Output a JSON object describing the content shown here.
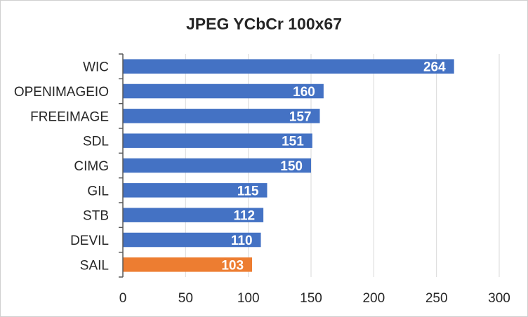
{
  "chart_data": {
    "type": "bar",
    "orientation": "horizontal",
    "title": "JPEG YCbCr 100x67",
    "categories": [
      "WIC",
      "OPENIMAGEIO",
      "FREEIMAGE",
      "SDL",
      "CIMG",
      "GIL",
      "STB",
      "DEVIL",
      "SAIL"
    ],
    "values": [
      264,
      160,
      157,
      151,
      150,
      115,
      112,
      110,
      103
    ],
    "xlim": [
      0,
      300
    ],
    "xticks": [
      "0",
      "50",
      "100",
      "150",
      "200",
      "250",
      "300"
    ],
    "grid": true,
    "legend": "none",
    "colors": {
      "default_bar": "#4472c4",
      "highlight_bar": "#ed7d31",
      "highlight_category": "SAIL"
    }
  }
}
